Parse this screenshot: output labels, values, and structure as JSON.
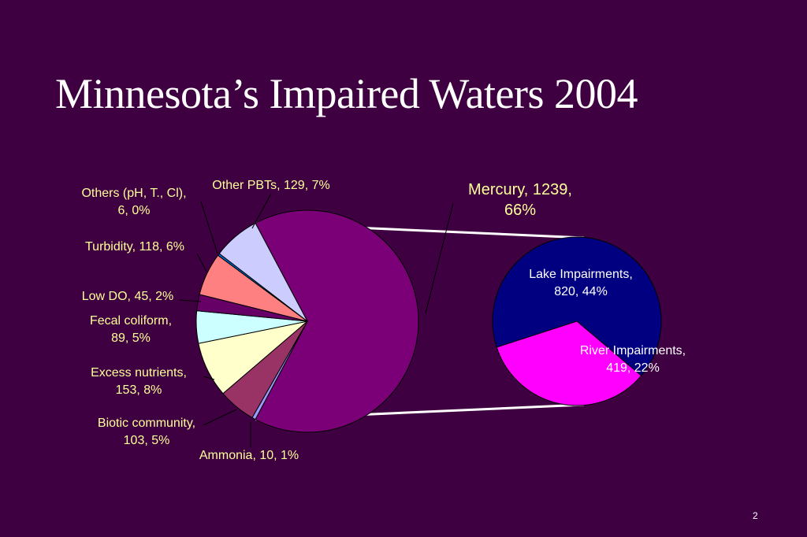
{
  "slide": {
    "title": "Minnesota’s Impaired Waters 2004",
    "page_number": "2"
  },
  "chart_data": [
    {
      "type": "pie",
      "slices": [
        {
          "label": "Mercury",
          "value": 1239,
          "percent": "66%",
          "label_lines": [
            "Mercury, 1239,",
            "66%"
          ],
          "color": "#7b0078"
        },
        {
          "label": "Ammonia",
          "value": 10,
          "percent": "1%",
          "label_lines": [
            "Ammonia, 10, 1%"
          ],
          "color": "#9999ff"
        },
        {
          "label": "Biotic community",
          "value": 103,
          "percent": "5%",
          "label_lines": [
            "Biotic community,",
            "103, 5%"
          ],
          "color": "#993366"
        },
        {
          "label": "Excess nutrients",
          "value": 153,
          "percent": "8%",
          "label_lines": [
            "Excess nutrients,",
            "153, 8%"
          ],
          "color": "#ffffcc"
        },
        {
          "label": "Fecal coliform",
          "value": 89,
          "percent": "5%",
          "label_lines": [
            "Fecal coliform,",
            "89, 5%"
          ],
          "color": "#ccffff"
        },
        {
          "label": "Low DO",
          "value": 45,
          "percent": "2%",
          "label_lines": [
            "Low DO, 45, 2%"
          ],
          "color": "#660066"
        },
        {
          "label": "Turbidity",
          "value": 118,
          "percent": "6%",
          "label_lines": [
            "Turbidity, 118, 6%"
          ],
          "color": "#ff8080"
        },
        {
          "label": "Others (pH, T., Cl)",
          "value": 6,
          "percent": "0%",
          "label_lines": [
            "Others (pH, T., Cl),",
            "6, 0%"
          ],
          "color": "#0066cc"
        },
        {
          "label": "Other PBTs",
          "value": 129,
          "percent": "7%",
          "label_lines": [
            "Other PBTs, 129, 7%"
          ],
          "color": "#ccccff"
        }
      ]
    },
    {
      "type": "pie",
      "slices": [
        {
          "label": "Lake Impairments",
          "value": 820,
          "percent": "44%",
          "label_lines": [
            "Lake Impairments,",
            "820, 44%"
          ],
          "color": "#000080"
        },
        {
          "label": "River Impairments",
          "value": 419,
          "percent": "22%",
          "label_lines": [
            "River Impairments,",
            "419, 22%"
          ],
          "color": "#ff00ff"
        }
      ]
    }
  ]
}
